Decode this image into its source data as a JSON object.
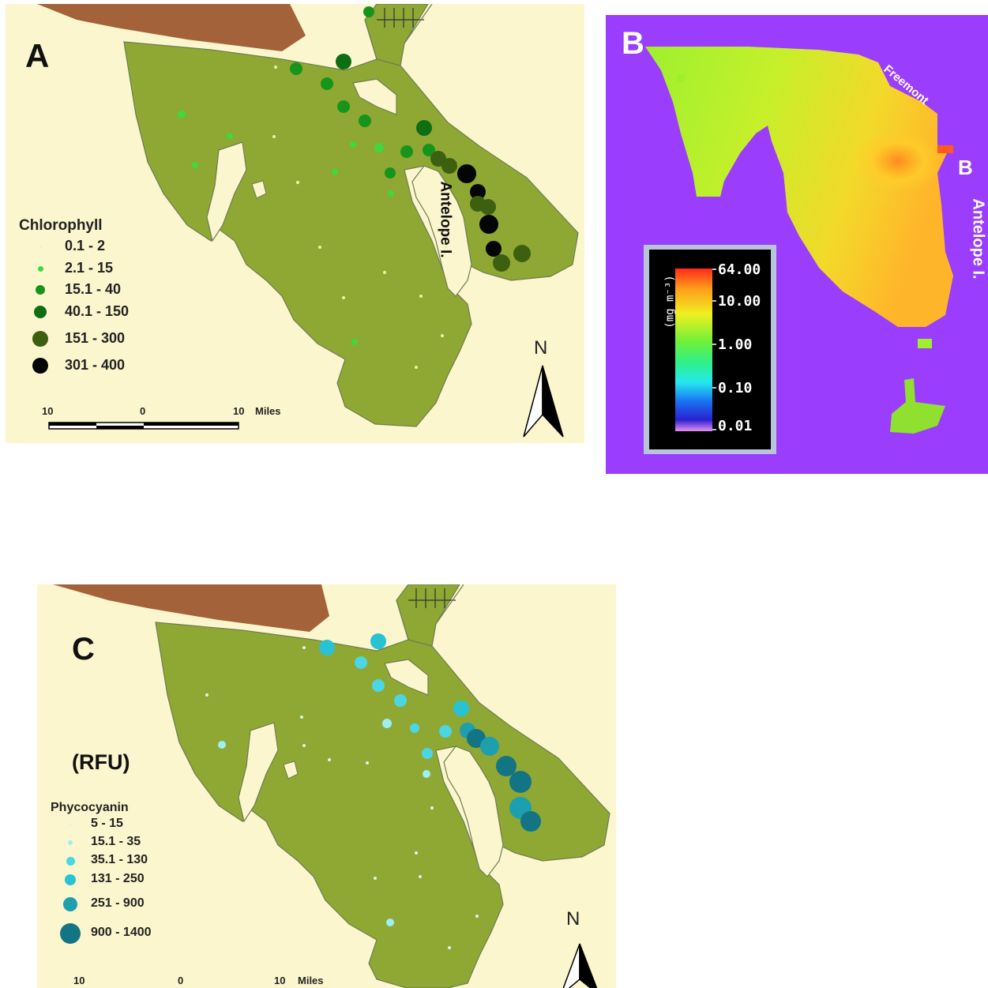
{
  "panel_a": {
    "label": "A",
    "legend_title": "Chlorophyll",
    "legend_items": [
      "0.1 - 2",
      "2.1 - 15",
      "15.1 - 40",
      "40.1 - 150",
      "151 - 300",
      "301 - 400"
    ],
    "legend_colors": [
      "#f3f1a8",
      "#3fd83f",
      "#16941c",
      "#0e6e12",
      "#3d6010",
      "#050505"
    ],
    "scale_labels": [
      "10",
      "0",
      "10",
      "Miles"
    ],
    "north_label": "N",
    "place_label": "Antelope I."
  },
  "panel_b": {
    "label_left": "B",
    "label_right": "B",
    "place_labels": [
      "Freemont",
      "Antelope I."
    ],
    "colorbar_unit": "(mg m⁻³)",
    "colorbar_ticks": [
      "64.00",
      "10.00",
      "1.00",
      "0.10",
      "0.01"
    ],
    "background_color": "#9a3dfc"
  },
  "panel_c": {
    "label": "C",
    "unit_label": "(RFU)",
    "legend_title": "Phycocyanin",
    "legend_items": [
      "5 - 15",
      "15.1 - 35",
      "35.1 - 130",
      "131 - 250",
      "251 - 900",
      "900 - 1400"
    ],
    "legend_colors": [
      "#d9f6f6",
      "#9feff0",
      "#4ad7e3",
      "#27c3d4",
      "#1d9fb0",
      "#137584"
    ],
    "scale_labels": [
      "10",
      "0",
      "10",
      "Miles"
    ],
    "north_label": "N"
  },
  "colors": {
    "water": "#8fa733",
    "land": "#fbf6cd",
    "mountain": "#a4623a"
  }
}
